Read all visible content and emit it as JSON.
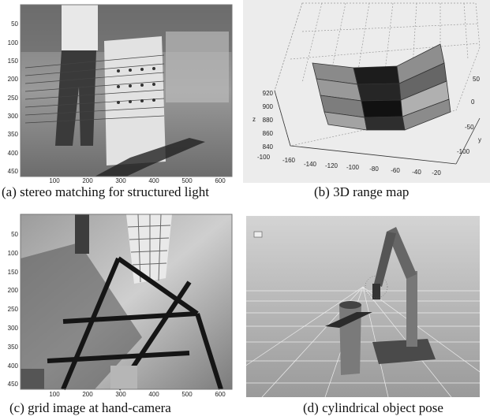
{
  "panels": [
    {
      "id": "a",
      "caption": "(a) stereo matching for structured light",
      "y_ticks": [
        "50",
        "100",
        "150",
        "200",
        "250",
        "300",
        "350",
        "400",
        "450"
      ],
      "x_ticks": [
        "100",
        "200",
        "300",
        "400",
        "500",
        "600"
      ]
    },
    {
      "id": "b",
      "caption": "(b) 3D range map",
      "z_label": "z",
      "y_label": "y",
      "z_ticks": [
        "920",
        "900",
        "880",
        "860",
        "840"
      ],
      "x_ticks": [
        "-160",
        "-140",
        "-120",
        "-100",
        "-80",
        "-60",
        "-40",
        "-20"
      ],
      "y_ticks": [
        "50",
        "0",
        "-50",
        "-100"
      ],
      "corner_tick": "-100"
    },
    {
      "id": "c",
      "caption": "(c) grid image at hand-camera",
      "y_ticks": [
        "50",
        "100",
        "150",
        "200",
        "250",
        "300",
        "350",
        "400",
        "450"
      ],
      "x_ticks": [
        "100",
        "200",
        "300",
        "400",
        "500",
        "600"
      ]
    },
    {
      "id": "d",
      "caption": "(d) cylindrical object pose"
    }
  ]
}
